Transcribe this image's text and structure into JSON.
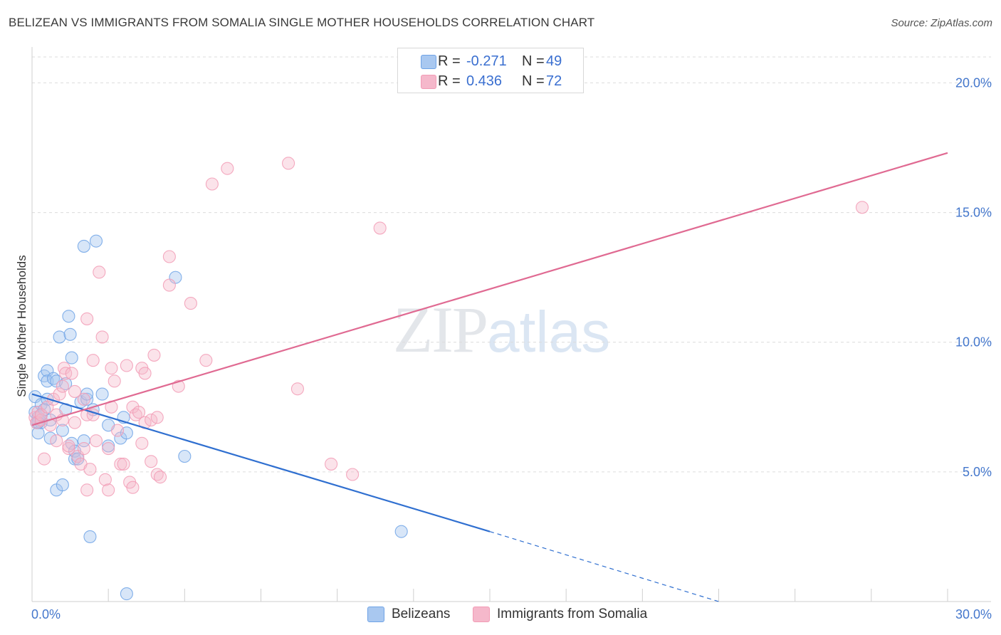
{
  "title": "BELIZEAN VS IMMIGRANTS FROM SOMALIA SINGLE MOTHER HOUSEHOLDS CORRELATION CHART",
  "source": "Source: ZipAtlas.com",
  "watermark": {
    "zip": "ZIP",
    "atlas": "atlas"
  },
  "legend": {
    "rows": [
      {
        "r_label": "R =",
        "r_value": "-0.271",
        "n_label": "N =",
        "n_value": "49",
        "color": "#a9c8f0"
      },
      {
        "r_label": "R =",
        "r_value": "0.436",
        "n_label": "N =",
        "n_value": "72",
        "color": "#f5b8cb"
      }
    ]
  },
  "bottom_legend": {
    "series1": "Belizeans",
    "series2": "Immigrants from Somalia"
  },
  "chart_data": {
    "type": "scatter",
    "title": "BELIZEAN VS IMMIGRANTS FROM SOMALIA SINGLE MOTHER HOUSEHOLDS CORRELATION CHART",
    "xlabel": "",
    "ylabel": "Single Mother Households",
    "xlim": [
      0,
      30
    ],
    "ylim": [
      0,
      21
    ],
    "x_tick_labels": [
      "0.0%",
      "30.0%"
    ],
    "y_ticks": [
      5,
      10,
      15,
      20
    ],
    "y_tick_labels": [
      "5.0%",
      "10.0%",
      "15.0%",
      "20.0%"
    ],
    "grid": true,
    "legend_position": "top-center",
    "series": [
      {
        "name": "Belizeans",
        "color": "#6fa3e6",
        "line_color": "#2f6fd0",
        "points": [
          [
            0.1,
            7.9
          ],
          [
            0.1,
            7.3
          ],
          [
            0.15,
            6.9
          ],
          [
            0.2,
            7.1
          ],
          [
            0.2,
            6.5
          ],
          [
            0.3,
            7.6
          ],
          [
            0.3,
            6.9
          ],
          [
            0.4,
            8.7
          ],
          [
            0.5,
            8.9
          ],
          [
            0.5,
            8.5
          ],
          [
            0.5,
            7.8
          ],
          [
            0.6,
            6.3
          ],
          [
            0.6,
            7.0
          ],
          [
            0.7,
            8.6
          ],
          [
            0.8,
            8.5
          ],
          [
            0.8,
            4.3
          ],
          [
            0.9,
            10.2
          ],
          [
            1.0,
            6.6
          ],
          [
            1.0,
            4.5
          ],
          [
            1.1,
            7.4
          ],
          [
            1.1,
            8.4
          ],
          [
            1.2,
            11.0
          ],
          [
            1.25,
            10.3
          ],
          [
            1.3,
            6.1
          ],
          [
            1.3,
            9.4
          ],
          [
            1.4,
            5.5
          ],
          [
            1.4,
            5.8
          ],
          [
            1.5,
            5.5
          ],
          [
            1.6,
            7.7
          ],
          [
            1.7,
            6.2
          ],
          [
            1.8,
            7.8
          ],
          [
            1.8,
            8.0
          ],
          [
            1.7,
            13.7
          ],
          [
            1.9,
            2.5
          ],
          [
            2.0,
            7.4
          ],
          [
            2.1,
            13.9
          ],
          [
            2.3,
            8.0
          ],
          [
            2.5,
            6.8
          ],
          [
            2.5,
            6.0
          ],
          [
            2.9,
            6.3
          ],
          [
            3.0,
            7.1
          ],
          [
            3.1,
            6.5
          ],
          [
            3.1,
            0.3
          ],
          [
            4.7,
            12.5
          ],
          [
            5.0,
            5.6
          ],
          [
            12.1,
            2.7
          ],
          [
            0.3,
            7.2
          ],
          [
            0.4,
            7.4
          ],
          [
            0.2,
            6.9
          ]
        ],
        "trend": {
          "x0": 0,
          "y0": 8.0,
          "x1": 15.0,
          "y1": 2.7
        },
        "trend_dashed": {
          "x0": 15.0,
          "y0": 2.7,
          "x1": 22.5,
          "y1": 0.0
        }
      },
      {
        "name": "Immigrants from Somalia",
        "color": "#f29bb5",
        "line_color": "#e06a92",
        "points": [
          [
            0.1,
            7.1
          ],
          [
            0.15,
            6.9
          ],
          [
            0.2,
            7.3
          ],
          [
            0.3,
            7.0
          ],
          [
            0.3,
            7.2
          ],
          [
            0.4,
            5.5
          ],
          [
            0.5,
            7.5
          ],
          [
            0.6,
            6.8
          ],
          [
            0.7,
            7.8
          ],
          [
            0.8,
            7.2
          ],
          [
            0.8,
            6.2
          ],
          [
            0.9,
            8.0
          ],
          [
            1.0,
            7.0
          ],
          [
            1.0,
            8.3
          ],
          [
            1.05,
            9.0
          ],
          [
            1.1,
            8.8
          ],
          [
            1.2,
            5.9
          ],
          [
            1.2,
            6.0
          ],
          [
            1.3,
            8.8
          ],
          [
            1.4,
            8.1
          ],
          [
            1.4,
            6.9
          ],
          [
            1.5,
            5.6
          ],
          [
            1.6,
            5.3
          ],
          [
            1.7,
            5.9
          ],
          [
            1.7,
            7.8
          ],
          [
            1.8,
            4.3
          ],
          [
            1.8,
            7.2
          ],
          [
            1.8,
            10.9
          ],
          [
            1.9,
            5.1
          ],
          [
            2.0,
            9.3
          ],
          [
            2.0,
            7.2
          ],
          [
            2.1,
            6.2
          ],
          [
            2.2,
            12.7
          ],
          [
            2.3,
            10.2
          ],
          [
            2.4,
            4.7
          ],
          [
            2.5,
            5.9
          ],
          [
            2.5,
            4.3
          ],
          [
            2.6,
            7.5
          ],
          [
            2.6,
            9.0
          ],
          [
            2.7,
            8.5
          ],
          [
            2.8,
            6.6
          ],
          [
            2.9,
            5.3
          ],
          [
            3.0,
            5.3
          ],
          [
            3.1,
            9.1
          ],
          [
            3.2,
            4.6
          ],
          [
            3.3,
            4.4
          ],
          [
            3.3,
            7.5
          ],
          [
            3.4,
            7.2
          ],
          [
            3.5,
            7.3
          ],
          [
            3.6,
            9.0
          ],
          [
            3.6,
            6.1
          ],
          [
            3.7,
            6.9
          ],
          [
            3.7,
            8.8
          ],
          [
            3.9,
            5.4
          ],
          [
            3.9,
            7.0
          ],
          [
            4.0,
            9.5
          ],
          [
            4.1,
            7.1
          ],
          [
            4.1,
            4.9
          ],
          [
            4.2,
            4.8
          ],
          [
            4.5,
            13.3
          ],
          [
            4.5,
            12.2
          ],
          [
            4.8,
            8.3
          ],
          [
            5.2,
            11.5
          ],
          [
            5.7,
            9.3
          ],
          [
            5.9,
            16.1
          ],
          [
            6.4,
            16.7
          ],
          [
            8.4,
            16.9
          ],
          [
            8.7,
            8.2
          ],
          [
            9.8,
            5.3
          ],
          [
            10.5,
            4.9
          ],
          [
            11.4,
            14.4
          ],
          [
            27.2,
            15.2
          ]
        ],
        "trend": {
          "x0": 0,
          "y0": 6.8,
          "x1": 30.0,
          "y1": 17.3
        }
      }
    ]
  }
}
